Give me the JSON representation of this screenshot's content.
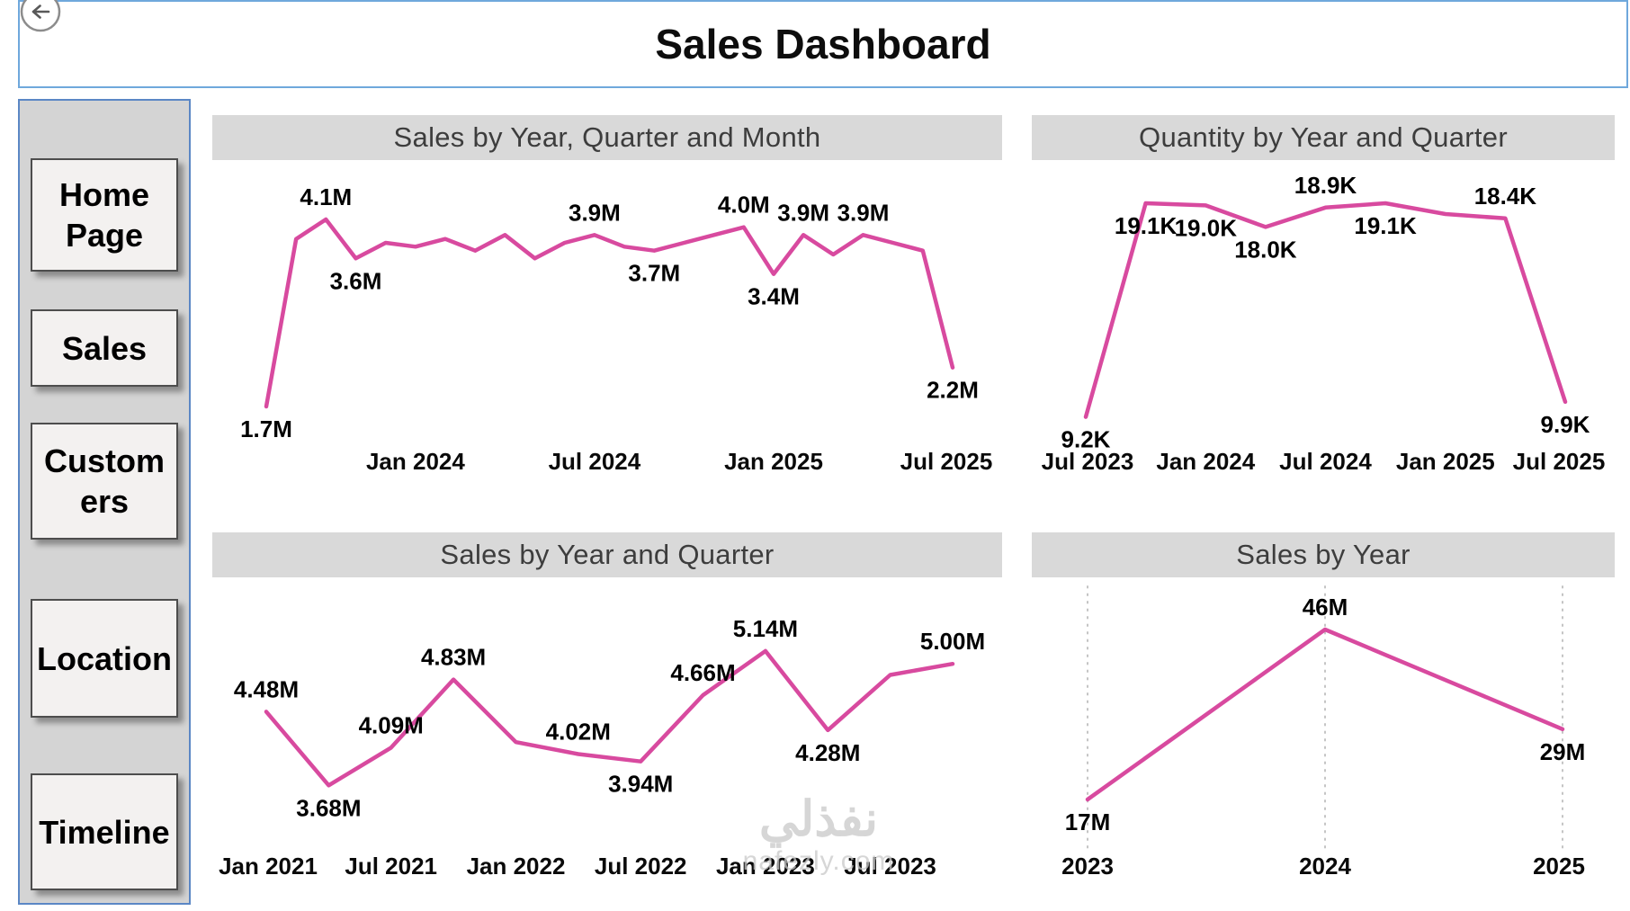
{
  "header": {
    "title": "Sales Dashboard"
  },
  "sidebar": {
    "items": [
      {
        "label": "Home Page"
      },
      {
        "label": "Sales"
      },
      {
        "label": "Customers"
      },
      {
        "label": "Location"
      },
      {
        "label": "Timeline"
      }
    ]
  },
  "watermark": {
    "line1": "نفذلي",
    "line2": "nafezly.com"
  },
  "colors": {
    "accent_line": "#d84a9f",
    "chart_title_bg": "#d9d9d9",
    "chart_title_text": "#3d3d3d",
    "sidebar_bg": "#d4d4d4",
    "sidebar_border": "#5b87c5",
    "header_border": "#6fa8dc",
    "button_bg": "#f3f1f0",
    "button_border": "#4d4d4d",
    "grid_line": "#c4c4c4",
    "watermark": "#c9c9c9"
  },
  "chart_data": [
    {
      "type": "line",
      "title": "Sales by Year, Quarter and Month",
      "unit": "M",
      "x": [
        "Aug 2023",
        "Sep 2023",
        "Oct 2023",
        "Nov 2023",
        "Dec 2023",
        "Jan 2024",
        "Feb 2024",
        "Mar 2024",
        "Apr 2024",
        "May 2024",
        "Jun 2024",
        "Jul 2024",
        "Aug 2024",
        "Sep 2024",
        "Oct 2024",
        "Nov 2024",
        "Dec 2024",
        "Jan 2025",
        "Feb 2025",
        "Mar 2025",
        "Apr 2025",
        "May 2025",
        "Jun 2025",
        "Jul 2025"
      ],
      "values": [
        1.7,
        3.85,
        4.1,
        3.6,
        3.8,
        3.75,
        3.85,
        3.7,
        3.9,
        3.6,
        3.8,
        3.9,
        3.75,
        3.7,
        3.8,
        3.9,
        4.0,
        3.4,
        3.9,
        3.65,
        3.9,
        3.8,
        3.7,
        2.2
      ],
      "point_labels": [
        "1.7M",
        "",
        "4.1M",
        "3.6M",
        "",
        "",
        "",
        "",
        "",
        "",
        "",
        "3.9M",
        "",
        "3.7M",
        "",
        "",
        "4.0M",
        "3.4M",
        "3.9M",
        "",
        "3.9M",
        "",
        "",
        "2.2M"
      ],
      "label_side": [
        "below",
        "",
        "above",
        "below",
        "",
        "",
        "",
        "",
        "",
        "",
        "",
        "above",
        "",
        "below",
        "",
        "",
        "above",
        "below",
        "above",
        "",
        "above",
        "",
        "",
        "below"
      ],
      "x_ticks": [
        {
          "index": 5,
          "label": "Jan 2024"
        },
        {
          "index": 11,
          "label": "Jul 2024"
        },
        {
          "index": 17,
          "label": "Jan 2025"
        },
        {
          "index": 23,
          "label": "Jul 2025"
        }
      ],
      "ylim": [
        1.4,
        4.4
      ],
      "grid_vertical": false,
      "legend": "none"
    },
    {
      "type": "line",
      "title": "Quantity by Year and Quarter",
      "unit": "K",
      "x": [
        "Jul 2023",
        "Oct 2023",
        "Jan 2024",
        "Apr 2024",
        "Jul 2024",
        "Oct 2024",
        "Jan 2025",
        "Apr 2025",
        "Jul 2025"
      ],
      "values": [
        9.2,
        19.1,
        19.0,
        18.0,
        18.9,
        19.1,
        18.6,
        18.4,
        9.9
      ],
      "point_labels": [
        "9.2K",
        "19.1K",
        "19.0K",
        "18.0K",
        "18.9K",
        "19.1K",
        "",
        "18.4K",
        "9.9K"
      ],
      "label_side": [
        "below",
        "below",
        "below",
        "below",
        "above",
        "below",
        "",
        "above",
        "below"
      ],
      "x_ticks": [
        {
          "index": 0,
          "label": "Jul 2023"
        },
        {
          "index": 2,
          "label": "Jan 2024"
        },
        {
          "index": 4,
          "label": "Jul 2024"
        },
        {
          "index": 6,
          "label": "Jan 2025"
        },
        {
          "index": 8,
          "label": "Jul 2025"
        }
      ],
      "ylim": [
        8.6,
        19.6
      ],
      "grid_vertical": false,
      "legend": "none"
    },
    {
      "type": "line",
      "title": "Sales by Year and Quarter",
      "unit": "M",
      "x": [
        "Jan 2021",
        "Apr 2021",
        "Jul 2021",
        "Oct 2021",
        "Jan 2022",
        "Apr 2022",
        "Jul 2022",
        "Oct 2022",
        "Jan 2023",
        "Apr 2023",
        "Jul 2023",
        "Oct 2023"
      ],
      "values": [
        4.48,
        3.68,
        4.09,
        4.83,
        4.15,
        4.02,
        3.94,
        4.66,
        5.14,
        4.28,
        4.88,
        5.0
      ],
      "point_labels": [
        "4.48M",
        "3.68M",
        "4.09M",
        "4.83M",
        "",
        "4.02M",
        "3.94M",
        "4.66M",
        "5.14M",
        "4.28M",
        "",
        "5.00M"
      ],
      "label_side": [
        "above",
        "below",
        "above",
        "above",
        "",
        "above",
        "below",
        "above",
        "above",
        "below",
        "",
        "above"
      ],
      "x_ticks": [
        {
          "index": 0,
          "label": "Jan 2021"
        },
        {
          "index": 2,
          "label": "Jul 2021"
        },
        {
          "index": 4,
          "label": "Jan 2022"
        },
        {
          "index": 6,
          "label": "Jul 2022"
        },
        {
          "index": 8,
          "label": "Jan 2023"
        },
        {
          "index": 10,
          "label": "Jul 2023"
        }
      ],
      "ylim": [
        3.4,
        5.5
      ],
      "grid_vertical": false,
      "legend": "none"
    },
    {
      "type": "line",
      "title": "Sales by Year",
      "unit": "M",
      "x": [
        "2023",
        "2024",
        "2025"
      ],
      "values": [
        17,
        46,
        29
      ],
      "point_labels": [
        "17M",
        "46M",
        "29M"
      ],
      "label_side": [
        "below",
        "above",
        "below"
      ],
      "x_ticks": [
        {
          "index": 0,
          "label": "2023"
        },
        {
          "index": 1,
          "label": "2024"
        },
        {
          "index": 2,
          "label": "2025"
        }
      ],
      "ylim": [
        15,
        48
      ],
      "grid_vertical": true,
      "legend": "none"
    }
  ]
}
